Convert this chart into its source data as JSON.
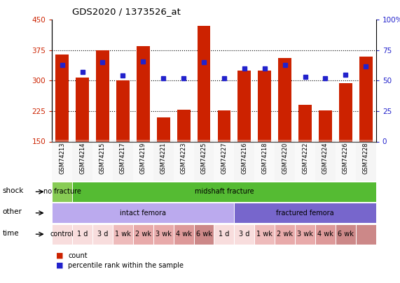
{
  "title": "GDS2020 / 1373526_at",
  "samples": [
    "GSM74213",
    "GSM74214",
    "GSM74215",
    "GSM74217",
    "GSM74219",
    "GSM74221",
    "GSM74223",
    "GSM74225",
    "GSM74227",
    "GSM74216",
    "GSM74218",
    "GSM74220",
    "GSM74222",
    "GSM74224",
    "GSM74226",
    "GSM74228"
  ],
  "bar_values": [
    365,
    307,
    375,
    300,
    385,
    210,
    228,
    435,
    226,
    325,
    325,
    355,
    240,
    226,
    293,
    360
  ],
  "dot_values": [
    63,
    57,
    65,
    54,
    66,
    52,
    52,
    65,
    52,
    60,
    60,
    63,
    53,
    52,
    55,
    62
  ],
  "ymin": 150,
  "ymax": 450,
  "yticks": [
    150,
    225,
    300,
    375,
    450
  ],
  "y2min": 0,
  "y2max": 100,
  "y2ticks": [
    0,
    25,
    50,
    75,
    100
  ],
  "bar_color": "#cc2200",
  "dot_color": "#2222cc",
  "shock_no_fracture_color": "#88cc55",
  "shock_midshaft_color": "#55bb33",
  "other_intact_color": "#bbaaee",
  "other_fractured_color": "#7766cc",
  "time_colors": [
    "#f8dddd",
    "#f8dddd",
    "#f8dddd",
    "#eebbbb",
    "#e8aaaa",
    "#e8aaaa",
    "#dd9999",
    "#cc8888",
    "#f8dddd",
    "#f8dddd",
    "#eebbbb",
    "#e8aaaa",
    "#e8aaaa",
    "#dd9999",
    "#cc8888",
    "#cc8888"
  ],
  "time_labels": [
    "control",
    "1 d",
    "3 d",
    "1 wk",
    "2 wk",
    "3 wk",
    "4 wk",
    "6 wk",
    "1 d",
    "3 d",
    "1 wk",
    "2 wk",
    "3 wk",
    "4 wk",
    "6 wk",
    ""
  ],
  "legend_count_color": "#cc2200",
  "legend_dot_color": "#2222cc"
}
